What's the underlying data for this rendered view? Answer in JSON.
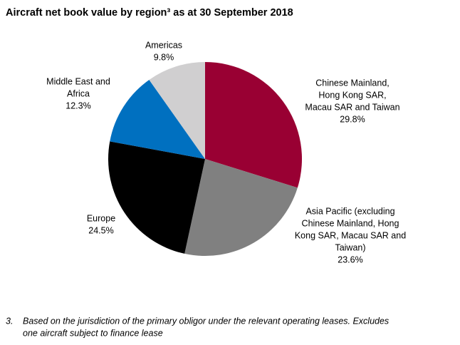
{
  "chart_data": {
    "type": "pie",
    "title": "Aircraft net book value by region³ as at 30 September 2018",
    "categories": [
      [
        "Chinese Mainland,",
        "Hong Kong SAR,",
        "Macau SAR and Taiwan"
      ],
      [
        "Asia Pacific (excluding",
        "Chinese Mainland, Hong",
        "Kong SAR, Macau SAR and",
        "Taiwan)"
      ],
      [
        "Europe"
      ],
      [
        "Middle East and",
        "Africa"
      ],
      [
        "Americas"
      ]
    ],
    "values": [
      29.8,
      23.6,
      24.5,
      12.3,
      9.8
    ],
    "value_labels": [
      "29.8%",
      "23.6%",
      "24.5%",
      "12.3%",
      "9.8%"
    ],
    "colors": [
      "#990033",
      "#808080",
      "#000000",
      "#0070c0",
      "#d0cfd0"
    ],
    "footnote": {
      "marker": "3.",
      "text": [
        "Based on the jurisdiction of the primary obligor under the relevant operating leases. Excludes",
        "one aircraft subject to finance lease"
      ]
    }
  }
}
